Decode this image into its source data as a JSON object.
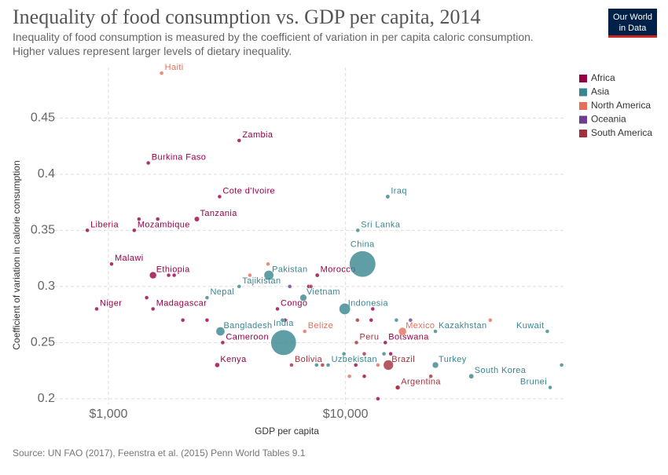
{
  "chart_data": {
    "type": "scatter",
    "title": "Inequality of food consumption vs. GDP per capita, 2014",
    "subtitle": "Inequality of food consumption is measured by the coefficient of variation in per capita caloric consumption. Higher values represent larger levels of dietary inequality.",
    "logo": [
      "Our World",
      "in Data"
    ],
    "x_label": "GDP per capita",
    "y_label": "Coefficient of variation in calorie consumption",
    "source": "Source: UN FAO (2017), Feenstra et al. (2015) Penn World Tables 9.1",
    "log_x": true,
    "grid": true,
    "legend": "right",
    "xlim": [
      560,
      85000
    ],
    "xticks": [
      {
        "value": 1000,
        "label": "$1,000"
      },
      {
        "value": 10000,
        "label": "$10,000"
      }
    ],
    "ylim": [
      0.195,
      0.495
    ],
    "yticks": [
      0.2,
      0.25,
      0.3,
      0.35,
      0.4,
      0.45
    ],
    "series": [
      {
        "name": "Africa",
        "color": "#970046",
        "x": [
          3560,
          1473,
          2944,
          2361,
          1285,
          815,
          1031,
          1542,
          7600,
          892,
          1542,
          5164,
          3035,
          2877,
          14720,
          1346,
          1614,
          1894,
          1795,
          1450,
          2060,
          2606,
          5560,
          7000,
          13030,
          12830,
          15510,
          11050,
          12000,
          13700,
          16500
        ],
        "values": [
          0.43,
          0.41,
          0.38,
          0.36,
          0.35,
          0.35,
          0.32,
          0.31,
          0.31,
          0.28,
          0.28,
          0.28,
          0.25,
          0.23,
          0.25,
          0.36,
          0.36,
          0.31,
          0.31,
          0.29,
          0.27,
          0.27,
          0.27,
          0.3,
          0.28,
          0.27,
          0.24,
          0.23,
          0.22,
          0.2,
          0.21
        ],
        "sizes": [
          16,
          18,
          23,
          52,
          27,
          4,
          17,
          99,
          34,
          19,
          24,
          5,
          22,
          46,
          2,
          11,
          10,
          12,
          8,
          14,
          6,
          2,
          9,
          12,
          3,
          2,
          4,
          2,
          2,
          1,
          2
        ],
        "labels": [
          "Zambia",
          "Burkina Faso",
          "Cote d'Ivoire",
          "Tanzania",
          "Mozambique",
          "Liberia",
          "Malawi",
          "Ethiopia",
          "Morocco",
          "Niger",
          "Madagascar",
          "Congo",
          "Cameroon",
          "Kenya",
          "Botswana",
          null,
          null,
          null,
          null,
          null,
          null,
          null,
          null,
          null,
          null,
          null,
          null,
          null,
          null,
          null,
          null
        ]
      },
      {
        "name": "Asia",
        "color": "#38868f",
        "x": [
          15070,
          11270,
          11800,
          4750,
          3560,
          2606,
          6640,
          9930,
          2967,
          5480,
          23950,
          71000,
          8450,
          23950,
          33950,
          73000,
          16390,
          14530,
          7550,
          81600,
          9850,
          5420
        ],
        "values": [
          0.38,
          0.35,
          0.32,
          0.31,
          0.3,
          0.29,
          0.29,
          0.28,
          0.26,
          0.25,
          0.26,
          0.26,
          0.23,
          0.23,
          0.22,
          0.21,
          0.27,
          0.24,
          0.23,
          0.23,
          0.24,
          0.27
        ],
        "sizes": [
          35,
          21,
          1370,
          190,
          8,
          28,
          92,
          255,
          157,
          1290,
          17,
          4,
          31,
          77,
          50,
          0.4,
          30,
          32,
          6,
          3,
          9,
          10
        ],
        "labels": [
          "Iraq",
          "Sri Lanka",
          "China",
          "Pakistan",
          "Tajikistan",
          "Nepal",
          "Vietnam",
          "Indonesia",
          "Bangladesh",
          "India",
          "Kazakhstan",
          "Kuwait",
          "Uzbekistan",
          "Turkey",
          "South Korea",
          "Brunei",
          null,
          null,
          null,
          null,
          null,
          null
        ]
      },
      {
        "name": "North America",
        "color": "#e56e5a",
        "x": [
          1676,
          6730,
          17400,
          4710,
          3950,
          40800,
          13700,
          10390
        ],
        "values": [
          0.49,
          0.26,
          0.26,
          0.32,
          0.31,
          0.27,
          0.23,
          0.22
        ],
        "sizes": [
          10,
          0.4,
          125,
          6,
          9,
          1,
          3,
          2
        ],
        "labels": [
          "Haiti",
          "Belize",
          "Mexico",
          null,
          null,
          null,
          null,
          null
        ]
      },
      {
        "name": "Oceania",
        "color": "#6c3d91",
        "x": [
          5820,
          18800
        ],
        "values": [
          0.3,
          0.27
        ],
        "sizes": [
          1,
          1
        ],
        "labels": [
          null,
          null
        ]
      },
      {
        "name": "South America",
        "color": "#a2303c",
        "x": [
          11120,
          15170,
          5920,
          16630,
          7150,
          11230,
          12000,
          22900,
          8000
        ],
        "values": [
          0.25,
          0.23,
          0.23,
          0.21,
          0.3,
          0.27,
          0.24,
          0.22,
          0.23
        ],
        "sizes": [
          31,
          204,
          11,
          43,
          7,
          1,
          3,
          6,
          3
        ],
        "labels": [
          "Peru",
          "Brazil",
          "Bolivia",
          "Argentina",
          null,
          null,
          null,
          null,
          null
        ]
      }
    ]
  }
}
